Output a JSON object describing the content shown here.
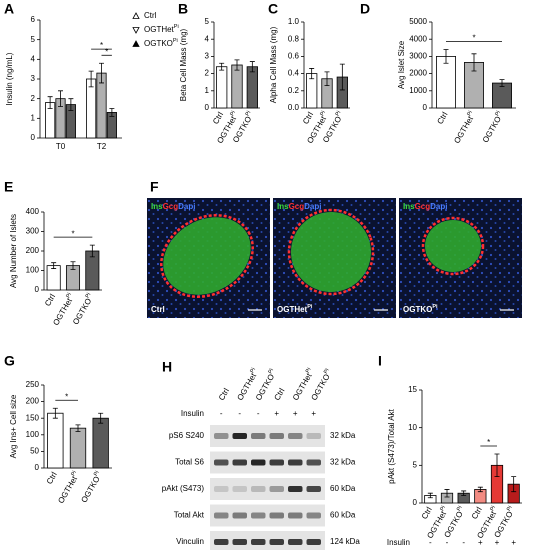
{
  "chart_data": [
    {
      "panel": "A",
      "type": "bar",
      "ylabel": "Insulin (ng/mL)",
      "categories": [
        "T0",
        "T2"
      ],
      "ylim": [
        0,
        6
      ],
      "yticks": [
        0,
        1,
        2,
        3,
        4,
        5,
        6
      ],
      "series": [
        {
          "name": "Ctrl",
          "color": "#ffffff",
          "values": [
            1.8,
            3.0
          ],
          "errors": [
            0.3,
            0.4
          ]
        },
        {
          "name": "OGTHet",
          "name_sup": "Pi",
          "color": "#b0b0b0",
          "values": [
            2.0,
            3.3
          ],
          "errors": [
            0.4,
            0.5
          ]
        },
        {
          "name": "OGTKO",
          "name_sup": "Pi",
          "color": "#5a5a5a",
          "values": [
            1.7,
            1.3
          ],
          "errors": [
            0.3,
            0.2
          ]
        }
      ],
      "significance": [
        {
          "label": "*",
          "bars": [
            [
              1,
              0
            ],
            [
              1,
              2
            ]
          ]
        },
        {
          "label": "*",
          "bars": [
            [
              1,
              1
            ],
            [
              1,
              2
            ]
          ]
        }
      ]
    },
    {
      "panel": "B",
      "type": "bar",
      "ylabel": "Beta Cell Mass (mg)",
      "categories": [
        "Ctrl",
        "OGTHet",
        "OGTKO"
      ],
      "category_sup": [
        null,
        "Pi",
        "Pi"
      ],
      "ylim": [
        0,
        5
      ],
      "yticks": [
        0,
        1,
        2,
        3,
        4,
        5
      ],
      "series": [
        {
          "colors": [
            "#ffffff",
            "#b0b0b0",
            "#5a5a5a"
          ],
          "values": [
            2.4,
            2.5,
            2.4
          ],
          "errors": [
            0.2,
            0.3,
            0.3
          ]
        }
      ]
    },
    {
      "panel": "C",
      "type": "bar",
      "ylabel": "Alpha Cell Mass (mg)",
      "categories": [
        "Ctrl",
        "OGTHet",
        "OGTKO"
      ],
      "category_sup": [
        null,
        "Pi",
        "Pi"
      ],
      "ylim": [
        0,
        1
      ],
      "yticks": [
        {
          "value": 0,
          "label": "0.0"
        },
        0.2,
        0.4,
        0.6,
        0.8,
        {
          "value": 1,
          "label": "1.0"
        }
      ],
      "series": [
        {
          "colors": [
            "#ffffff",
            "#b0b0b0",
            "#5a5a5a"
          ],
          "values": [
            0.4,
            0.34,
            0.36
          ],
          "errors": [
            0.06,
            0.08,
            0.15
          ]
        }
      ]
    },
    {
      "panel": "D",
      "type": "bar",
      "ylabel": "Avg Islet Size",
      "categories": [
        "Ctrl",
        "OGTHet",
        "OGTKO"
      ],
      "category_sup": [
        null,
        "Pi",
        "Pi"
      ],
      "ylim": [
        0,
        5000
      ],
      "yticks": [
        0,
        1000,
        2000,
        3000,
        4000,
        5000
      ],
      "series": [
        {
          "colors": [
            "#ffffff",
            "#b0b0b0",
            "#5a5a5a"
          ],
          "values": [
            3000,
            2650,
            1450
          ],
          "errors": [
            400,
            500,
            200
          ]
        }
      ],
      "significance": [
        {
          "label": "*",
          "bars": [
            [
              0,
              0
            ],
            [
              2,
              0
            ]
          ]
        }
      ]
    },
    {
      "panel": "E",
      "type": "bar",
      "ylabel": "Avg Number of Islets",
      "categories": [
        "Ctrl",
        "OGTHet",
        "OGTKO"
      ],
      "category_sup": [
        null,
        "Pi",
        "Pi"
      ],
      "ylim": [
        0,
        400
      ],
      "yticks": [
        0,
        100,
        200,
        300,
        400
      ],
      "series": [
        {
          "colors": [
            "#ffffff",
            "#b0b0b0",
            "#5a5a5a"
          ],
          "values": [
            125,
            125,
            200
          ],
          "errors": [
            15,
            20,
            30
          ]
        }
      ],
      "significance": [
        {
          "label": "*",
          "bars": [
            [
              0,
              0
            ],
            [
              2,
              0
            ]
          ]
        }
      ]
    },
    {
      "panel": "G",
      "type": "bar",
      "ylabel": "Avg Ins+ Cell size",
      "categories": [
        "Ctrl",
        "OGTHet",
        "OGTKO"
      ],
      "category_sup": [
        null,
        "Pi",
        "Pi"
      ],
      "ylim": [
        0,
        250
      ],
      "yticks": [
        0,
        50,
        100,
        150,
        200,
        250
      ],
      "series": [
        {
          "colors": [
            "#ffffff",
            "#b0b0b0",
            "#5a5a5a"
          ],
          "values": [
            165,
            120,
            150
          ],
          "errors": [
            15,
            10,
            15
          ]
        }
      ],
      "significance": [
        {
          "label": "*",
          "bars": [
            [
              0,
              0
            ],
            [
              1,
              0
            ]
          ]
        }
      ]
    },
    {
      "panel": "I",
      "type": "bar",
      "ylabel": "pAkt (S473)/Total Akt",
      "categories": [
        "Ctrl",
        "OGTHet",
        "OGTKO",
        "Ctrl",
        "OGTHet",
        "OGTKO"
      ],
      "category_sup": [
        null,
        "Pi",
        "Pi",
        null,
        "Pi",
        "Pi"
      ],
      "ylim": [
        0,
        15
      ],
      "yticks": [
        0,
        5,
        10,
        15
      ],
      "series": [
        {
          "colors": [
            "#ffffff",
            "#b0b0b0",
            "#5a5a5a",
            "#f28b82",
            "#e53935",
            "#b71c1c"
          ],
          "values": [
            1.0,
            1.3,
            1.3,
            1.8,
            5.0,
            2.5
          ],
          "errors": [
            0.3,
            0.5,
            0.3,
            0.3,
            1.5,
            1.0
          ]
        }
      ],
      "significance": [
        {
          "label": "*",
          "bars": [
            [
              3,
              0
            ],
            [
              4,
              0
            ]
          ]
        }
      ],
      "row_label": "Insulin",
      "row_values": [
        "-",
        "-",
        "-",
        "+",
        "+",
        "+"
      ]
    }
  ],
  "images": {
    "panel": "F",
    "stain": [
      {
        "text": "Ins",
        "color": "#3ddc3d"
      },
      {
        "text": "Gcg",
        "color": "#ff3030"
      },
      {
        "text": "Dapi",
        "color": "#4a7dff"
      }
    ],
    "panels": [
      {
        "label": "Ctrl"
      },
      {
        "label": "OGTHet",
        "sup": "Pi"
      },
      {
        "label": "OGTKO",
        "sup": "Pi"
      }
    ]
  },
  "blot": {
    "panel": "H",
    "lanes": [
      "Ctrl",
      "OGTHet",
      "OGTKO",
      "Ctrl",
      "OGTHet",
      "OGTKO"
    ],
    "lane_sup": [
      null,
      "Pi",
      "Pi",
      null,
      "Pi",
      "Pi"
    ],
    "treatment_label": "Insulin",
    "treatment": [
      "-",
      "-",
      "-",
      "+",
      "+",
      "+"
    ],
    "rows": [
      {
        "label": "pS6 S240",
        "size": "32 kDa"
      },
      {
        "label": "Total S6",
        "size": "32 kDa"
      },
      {
        "label": "pAkt (S473)",
        "size": "60 kDa"
      },
      {
        "label": "Total Akt",
        "size": "60 kDa"
      },
      {
        "label": "Vinculin",
        "size": "124 kDa"
      }
    ]
  }
}
